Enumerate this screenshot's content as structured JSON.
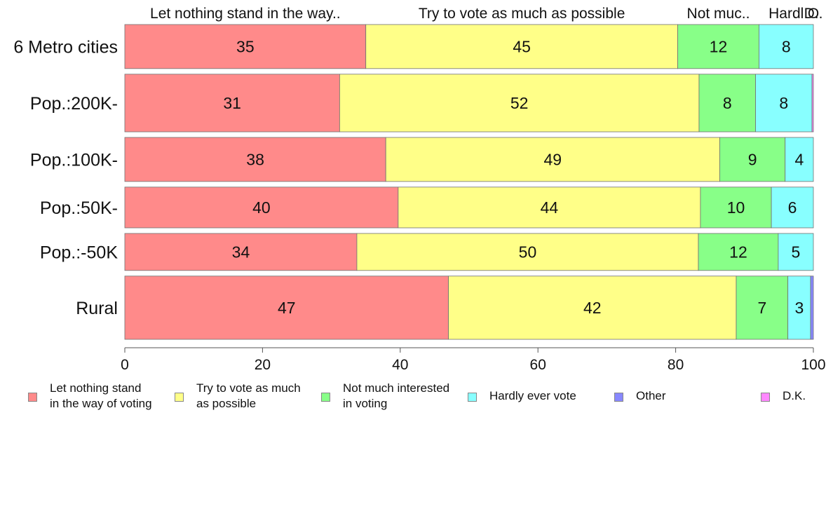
{
  "chart_data": {
    "type": "bar",
    "orientation": "horizontal-stacked-percent",
    "categories": [
      "6 Metro cities",
      "Pop.:200K-",
      "Pop.:100K-",
      "Pop.:50K-",
      "Pop.:-50K",
      "Rural"
    ],
    "xlim": [
      0,
      100
    ],
    "xticks": [
      "0",
      "20",
      "40",
      "60",
      "80",
      "100"
    ],
    "header_labels": [
      "Let nothing stand in the way..",
      "Try to vote as much as possible",
      "Not muc..",
      "Hardl",
      "O",
      "D.."
    ],
    "series": [
      {
        "name": "Let nothing stand\nin the way of voting",
        "color": "#ff8a8a",
        "values": [
          35.0,
          31.2,
          37.9,
          39.7,
          33.7,
          47.0
        ]
      },
      {
        "name": "Try to vote as much\nas possible",
        "color": "#ffff88",
        "values": [
          45.3,
          52.2,
          48.5,
          43.9,
          49.6,
          41.8
        ]
      },
      {
        "name": "Not much interested\nin voting",
        "color": "#88ff88",
        "values": [
          11.8,
          8.2,
          9.5,
          10.3,
          11.6,
          7.5
        ]
      },
      {
        "name": "Hardly ever vote",
        "color": "#88ffff",
        "values": [
          7.9,
          8.2,
          4.1,
          6.1,
          5.1,
          3.3
        ]
      },
      {
        "name": "Other",
        "color": "#8888ff",
        "values": [
          0,
          0,
          0,
          0,
          0,
          0.4
        ]
      },
      {
        "name": "D.K.",
        "color": "#ff88ff",
        "values": [
          0,
          0.2,
          0,
          0,
          0,
          0
        ]
      }
    ],
    "data_labels": [
      [
        "35",
        "45",
        "12",
        "8",
        "",
        ""
      ],
      [
        "31",
        "52",
        "8",
        "8",
        "",
        ""
      ],
      [
        "38",
        "49",
        "9",
        "4",
        "",
        ""
      ],
      [
        "40",
        "44",
        "10",
        "6",
        "",
        ""
      ],
      [
        "34",
        "50",
        "12",
        "5",
        "",
        ""
      ],
      [
        "47",
        "42",
        "7",
        "3",
        "",
        ""
      ]
    ],
    "row_weights": [
      0.94,
      1.23,
      0.94,
      0.87,
      0.79,
      1.35
    ],
    "grid": false,
    "legend": "bottom"
  }
}
